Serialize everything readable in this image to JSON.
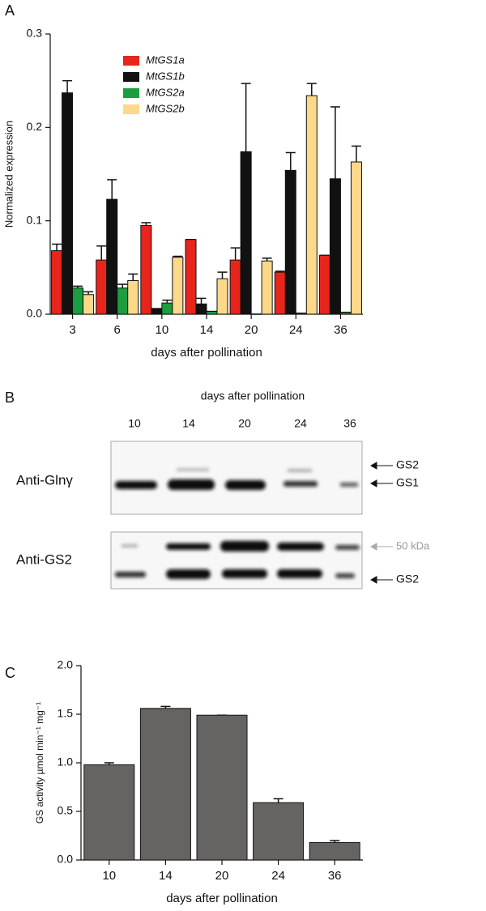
{
  "chart_data": [
    {
      "type": "bar",
      "panel": "A",
      "ylabel": "Normalized expression",
      "xlabel": "days after pollination",
      "categories": [
        "3",
        "6",
        "10",
        "14",
        "20",
        "24",
        "36"
      ],
      "series": [
        {
          "name": "MtGS1a",
          "color": "#e8251c",
          "values": [
            0.068,
            0.058,
            0.095,
            0.08,
            0.058,
            0.045,
            0.063
          ],
          "errors": [
            0.007,
            0.015,
            0.003,
            0,
            0.013,
            0.001,
            0
          ]
        },
        {
          "name": "MtGS1b",
          "color": "#111111",
          "values": [
            0.237,
            0.123,
            0.006,
            0.011,
            0.174,
            0.154,
            0.145
          ],
          "errors": [
            0.013,
            0.021,
            0,
            0.006,
            0.073,
            0.019,
            0.077
          ]
        },
        {
          "name": "MtGS2a",
          "color": "#1a9e3f",
          "values": [
            0.028,
            0.028,
            0.012,
            0.003,
            0,
            0.001,
            0.002
          ],
          "errors": [
            0.002,
            0.004,
            0.003,
            0,
            0,
            0,
            0
          ]
        },
        {
          "name": "MtGS2b",
          "color": "#fcd88a",
          "values": [
            0.021,
            0.036,
            0.061,
            0.038,
            0.057,
            0.234,
            0.163
          ],
          "errors": [
            0.003,
            0.007,
            0.001,
            0.007,
            0.003,
            0.013,
            0.017
          ]
        }
      ],
      "ylim": [
        0,
        0.3
      ],
      "yticks": [
        {
          "value": 0,
          "label": "0.0"
        },
        0.1,
        0.2,
        0.3
      ],
      "legend": "upper left"
    },
    {
      "type": "bar",
      "panel": "C",
      "ylabel": "GS activity µmol min⁻¹ mg⁻¹",
      "xlabel": "days after pollination",
      "categories": [
        "10",
        "14",
        "20",
        "24",
        "36"
      ],
      "values": [
        0.98,
        1.56,
        1.49,
        0.59,
        0.18
      ],
      "errors": [
        0.02,
        0.02,
        0,
        0.04,
        0.02
      ],
      "color": "#666462",
      "ylim": [
        0,
        2.0
      ],
      "yticks": [
        {
          "value": 0,
          "label": "0.0"
        },
        0.5,
        {
          "value": 1,
          "label": "1.0"
        },
        1.5,
        {
          "value": 2,
          "label": "2.0"
        }
      ]
    }
  ],
  "blot": {
    "panel": "B",
    "title": "days after pollination",
    "lanes": [
      "10",
      "14",
      "20",
      "24",
      "36"
    ],
    "rows": [
      "Anti-Glnγ",
      "Anti-GS2"
    ],
    "markers": [
      "GS2",
      "GS1",
      "50 kDa",
      "GS2"
    ]
  }
}
